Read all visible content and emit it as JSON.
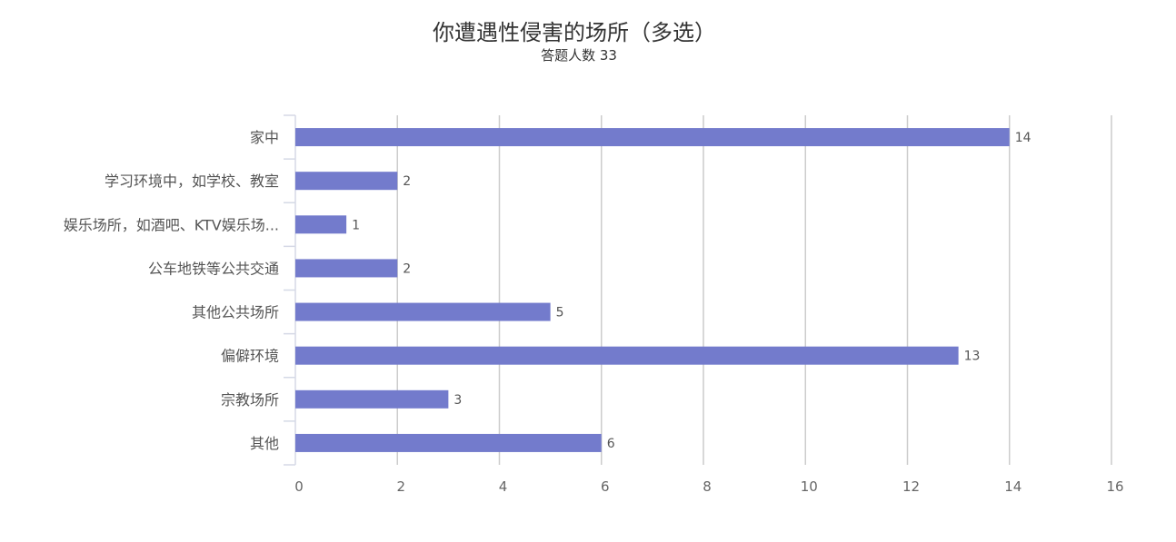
{
  "chart_data": {
    "type": "bar",
    "orientation": "horizontal",
    "title": "你遭遇性侵害的场所（多选）",
    "subtitle": "答题人数 33",
    "categories": [
      "家中",
      "学习环境中，如学校、教室",
      "娱乐场所，如酒吧、KTV娱乐场...",
      "公车地铁等公共交通",
      "其他公共场所",
      "偏僻环境",
      "宗教场所",
      "其他"
    ],
    "values": [
      14,
      2,
      1,
      2,
      5,
      13,
      3,
      6
    ],
    "xlim": [
      0,
      16
    ],
    "xticks": [
      0,
      2,
      4,
      6,
      8,
      10,
      12,
      14,
      16
    ],
    "grid": true,
    "legend": "none",
    "bar_color": "#737bcc"
  }
}
